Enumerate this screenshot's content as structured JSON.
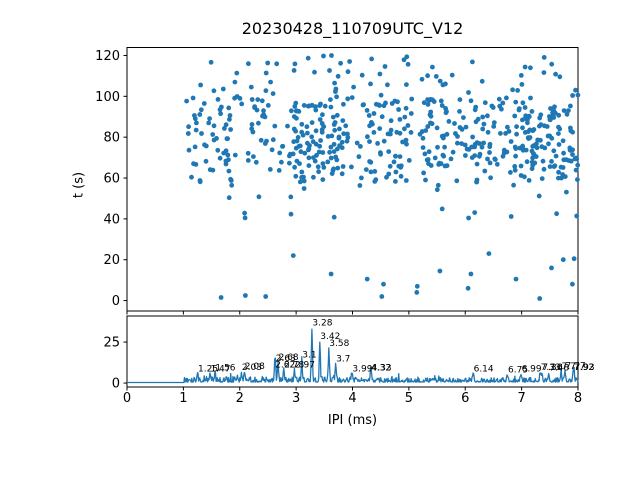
{
  "figure": {
    "title": "20230428_110709UTC_V12",
    "background": "#ffffff",
    "accent_color": "#1f77b4"
  },
  "chart_data": [
    {
      "type": "scatter",
      "title": "20230428_110709UTC_V12",
      "xlabel": "",
      "ylabel": "t (s)",
      "xlim": [
        0,
        8
      ],
      "ylim": [
        123.9,
        -5.1
      ],
      "y_axis_inverted": true,
      "grid": false,
      "x_ticks": [
        "0",
        "1",
        "2",
        "3",
        "4",
        "5",
        "6",
        "7",
        "8"
      ],
      "x_tick_labels_visible": false,
      "y_ticks": [
        "0",
        "20",
        "40",
        "60",
        "80",
        "100",
        "120"
      ],
      "y_tick_values": [
        0,
        20,
        40,
        60,
        80,
        100,
        120
      ],
      "x_tick_values": [
        0,
        1,
        2,
        3,
        4,
        5,
        6,
        7,
        8
      ],
      "marker_color": "#1f77b4",
      "points_visible_outliers": [
        [
          1.67,
          1.5
        ],
        [
          2.1,
          2.5
        ],
        [
          2.46,
          2.0
        ],
        [
          4.52,
          2.0
        ],
        [
          5.14,
          4.0
        ],
        [
          7.32,
          1.0
        ],
        [
          4.55,
          8.0
        ],
        [
          5.15,
          7.0
        ],
        [
          3.62,
          13.0
        ],
        [
          2.95,
          22.0
        ],
        [
          4.26,
          10.5
        ],
        [
          5.55,
          14.5
        ],
        [
          6.1,
          13.0
        ],
        [
          7.53,
          16.0
        ],
        [
          7.74,
          20.0
        ],
        [
          6.42,
          23.0
        ],
        [
          7.9,
          8.0
        ],
        [
          6.05,
          6.0
        ],
        [
          6.9,
          10.5
        ],
        [
          7.93,
          20.5
        ]
      ],
      "point_density_clusters": [
        {
          "count": 330,
          "x_range": [
            1.05,
            8.0
          ],
          "t_range": [
            58,
            100
          ]
        },
        {
          "count": 90,
          "x_range": [
            1.5,
            8.0
          ],
          "t_range": [
            63,
            92
          ]
        },
        {
          "count": 50,
          "x_range": [
            2.95,
            3.85
          ],
          "t_range": [
            60,
            98
          ]
        },
        {
          "count": 50,
          "x_range": [
            6.85,
            8.0
          ],
          "t_range": [
            58,
            97
          ]
        },
        {
          "count": 65,
          "x_range": [
            1.2,
            8.0
          ],
          "t_range": [
            100,
            120
          ]
        },
        {
          "count": 22,
          "x_range": [
            1.5,
            8.0
          ],
          "t_range": [
            40,
            58
          ]
        }
      ]
    },
    {
      "type": "line",
      "xlabel": "IPI (ms)",
      "ylabel": "",
      "xlim": [
        0,
        8
      ],
      "ylim": [
        -2.4,
        40.9
      ],
      "grid": false,
      "x_ticks": [
        "0",
        "1",
        "2",
        "3",
        "4",
        "5",
        "6",
        "7",
        "8"
      ],
      "x_tick_values": [
        0,
        1,
        2,
        3,
        4,
        5,
        6,
        7,
        8
      ],
      "y_ticks": [
        "0",
        "25"
      ],
      "y_tick_values": [
        0,
        25
      ],
      "line_color": "#1f77b4",
      "flat_value": 0.35,
      "flat_until_x": 1.02,
      "labeled_peaks": [
        {
          "label": "1.25",
          "x": 1.25,
          "h": 5.5
        },
        {
          "label": "1.47",
          "x": 1.47,
          "h": 5.5
        },
        {
          "label": "1.56",
          "x": 1.56,
          "h": 6.0
        },
        {
          "label": "2.03",
          "x": 2.03,
          "h": 6.5
        },
        {
          "label": "2.08",
          "x": 2.08,
          "h": 7.0
        },
        {
          "label": "2.62",
          "x": 2.62,
          "h": 8.0
        },
        {
          "label": "2.63",
          "x": 2.63,
          "h": 12.0
        },
        {
          "label": "2.68",
          "x": 2.68,
          "h": 12.5
        },
        {
          "label": "2.78",
          "x": 2.78,
          "h": 8.0
        },
        {
          "label": "2.97",
          "x": 2.97,
          "h": 8.0
        },
        {
          "label": "3.1",
          "x": 3.1,
          "h": 14.0
        },
        {
          "label": "3.28",
          "x": 3.28,
          "h": 33.5
        },
        {
          "label": "3.42",
          "x": 3.42,
          "h": 25.5
        },
        {
          "label": "3.58",
          "x": 3.58,
          "h": 21.0
        },
        {
          "label": "3.7",
          "x": 3.7,
          "h": 11.5
        },
        {
          "label": "3.99",
          "x": 3.99,
          "h": 5.5
        },
        {
          "label": "4.32",
          "x": 4.32,
          "h": 6.0
        },
        {
          "label": "4.33",
          "x": 4.33,
          "h": 6.0
        },
        {
          "label": "6.14",
          "x": 6.14,
          "h": 5.5
        },
        {
          "label": "6.75",
          "x": 6.75,
          "h": 5.0
        },
        {
          "label": "6.99",
          "x": 6.99,
          "h": 5.5
        },
        {
          "label": "7.33",
          "x": 7.33,
          "h": 6.5
        },
        {
          "label": "7.36",
          "x": 7.36,
          "h": 6.5
        },
        {
          "label": "7.48",
          "x": 7.48,
          "h": 6.0
        },
        {
          "label": "7.7",
          "x": 7.7,
          "h": 7.0
        },
        {
          "label": "7.77",
          "x": 7.77,
          "h": 7.5
        },
        {
          "label": "7.92",
          "x": 7.92,
          "h": 6.5
        },
        {
          "label": "7.93",
          "x": 7.93,
          "h": 6.5
        }
      ]
    }
  ],
  "render_hints": {
    "seed": 20230428
  }
}
